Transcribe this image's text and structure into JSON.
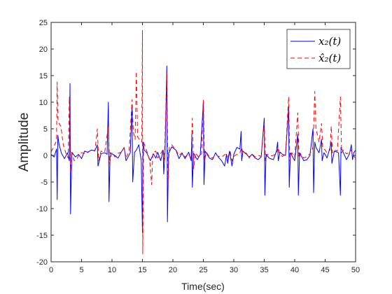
{
  "chart_data": {
    "type": "line",
    "title": "",
    "xlabel": "Time(sec)",
    "ylabel": "Amplitude",
    "xlim": [
      0,
      50
    ],
    "ylim": [
      -20,
      25
    ],
    "xticks": [
      0,
      5,
      10,
      15,
      20,
      25,
      30,
      35,
      40,
      45,
      50
    ],
    "yticks": [
      -20,
      -15,
      -10,
      -5,
      0,
      5,
      10,
      15,
      20,
      25
    ],
    "grid": false,
    "legend_position": "top-right",
    "series": [
      {
        "name": "x_2(t)",
        "legend_label": "x₂(t)",
        "color": "#0000ff",
        "line_style": "solid",
        "points": [
          [
            0.0,
            0.2
          ],
          [
            0.5,
            -0.3
          ],
          [
            0.9,
            1.2
          ],
          [
            1.0,
            -8.3
          ],
          [
            1.1,
            3.8
          ],
          [
            1.3,
            2.1
          ],
          [
            1.7,
            0.4
          ],
          [
            2.2,
            -0.6
          ],
          [
            2.7,
            0.5
          ],
          [
            3.0,
            -1.0
          ],
          [
            3.1,
            13.5
          ],
          [
            3.2,
            -11.0
          ],
          [
            3.4,
            0.6
          ],
          [
            4.0,
            -0.3
          ],
          [
            4.5,
            0.2
          ],
          [
            5.0,
            -0.6
          ],
          [
            5.5,
            0.8
          ],
          [
            6.0,
            0.6
          ],
          [
            6.6,
            1.0
          ],
          [
            7.2,
            0.9
          ],
          [
            7.6,
            2.0
          ],
          [
            7.7,
            -2.0
          ],
          [
            8.2,
            0.3
          ],
          [
            8.8,
            0.5
          ],
          [
            9.2,
            0.2
          ],
          [
            9.4,
            10.0
          ],
          [
            9.5,
            -8.7
          ],
          [
            9.7,
            0.5
          ],
          [
            10.3,
            0.1
          ],
          [
            11.0,
            -0.5
          ],
          [
            11.5,
            0.6
          ],
          [
            12.0,
            1.5
          ],
          [
            12.3,
            -1.0
          ],
          [
            13.0,
            0.5
          ],
          [
            13.3,
            9.5
          ],
          [
            13.4,
            -5.0
          ],
          [
            13.7,
            0.6
          ],
          [
            14.0,
            1.0
          ],
          [
            14.4,
            2.0
          ],
          [
            14.8,
            -1.0
          ],
          [
            15.0,
            -14.5
          ],
          [
            15.1,
            2.5
          ],
          [
            15.3,
            1.0
          ],
          [
            15.7,
            0.5
          ],
          [
            16.3,
            -1.0
          ],
          [
            16.8,
            0.3
          ],
          [
            17.2,
            -0.5
          ],
          [
            17.5,
            0.6
          ],
          [
            18.0,
            -1.0
          ],
          [
            18.4,
            1.0
          ],
          [
            18.5,
            -3.5
          ],
          [
            18.7,
            0.3
          ],
          [
            19.0,
            16.8
          ],
          [
            19.1,
            -12.5
          ],
          [
            19.3,
            0.4
          ],
          [
            19.8,
            1.6
          ],
          [
            20.5,
            1.0
          ],
          [
            21.0,
            -0.6
          ],
          [
            21.5,
            0.4
          ],
          [
            22.0,
            -0.6
          ],
          [
            22.6,
            0.6
          ],
          [
            23.0,
            -1.0
          ],
          [
            23.1,
            4.0
          ],
          [
            23.2,
            -6.0
          ],
          [
            23.4,
            0.4
          ],
          [
            24.0,
            -0.8
          ],
          [
            24.5,
            0.2
          ],
          [
            25.0,
            10.0
          ],
          [
            25.1,
            -5.5
          ],
          [
            25.3,
            0.8
          ],
          [
            26.0,
            -0.5
          ],
          [
            26.5,
            -0.8
          ],
          [
            27.0,
            0.5
          ],
          [
            27.5,
            -0.4
          ],
          [
            28.0,
            -1.0
          ],
          [
            28.5,
            -2.0
          ],
          [
            28.8,
            0.2
          ],
          [
            29.0,
            -1.5
          ],
          [
            29.3,
            0.8
          ],
          [
            29.7,
            -2.0
          ],
          [
            30.0,
            0.2
          ],
          [
            30.5,
            1.5
          ],
          [
            31.0,
            1.2
          ],
          [
            31.2,
            4.5
          ],
          [
            31.3,
            -1.0
          ],
          [
            31.5,
            0.8
          ],
          [
            32.0,
            0.3
          ],
          [
            32.5,
            -0.3
          ],
          [
            33.0,
            0.2
          ],
          [
            33.5,
            -0.5
          ],
          [
            34.0,
            -0.8
          ],
          [
            34.5,
            -0.3
          ],
          [
            35.0,
            7.0
          ],
          [
            35.1,
            -7.5
          ],
          [
            35.3,
            0.2
          ],
          [
            35.8,
            -0.5
          ],
          [
            36.5,
            -0.8
          ],
          [
            37.0,
            0.8
          ],
          [
            37.2,
            2.5
          ],
          [
            37.3,
            -1.0
          ],
          [
            37.6,
            0.6
          ],
          [
            38.0,
            0.2
          ],
          [
            38.5,
            0.0
          ],
          [
            39.0,
            9.0
          ],
          [
            39.1,
            -6.0
          ],
          [
            39.3,
            0.5
          ],
          [
            40.0,
            -1.0
          ],
          [
            40.5,
            4.0
          ],
          [
            40.6,
            -7.5
          ],
          [
            40.8,
            0.5
          ],
          [
            41.5,
            -1.0
          ],
          [
            42.0,
            -0.8
          ],
          [
            42.5,
            0.0
          ],
          [
            43.0,
            5.0
          ],
          [
            43.1,
            -7.0
          ],
          [
            43.3,
            2.5
          ],
          [
            43.5,
            1.5
          ],
          [
            44.0,
            0.5
          ],
          [
            44.4,
            3.0
          ],
          [
            44.5,
            -1.0
          ],
          [
            44.8,
            0.5
          ],
          [
            45.0,
            0.2
          ],
          [
            45.3,
            -0.5
          ],
          [
            45.8,
            1.5
          ],
          [
            46.0,
            2.5
          ],
          [
            46.1,
            -1.5
          ],
          [
            46.5,
            0.8
          ],
          [
            47.2,
            0.5
          ],
          [
            47.5,
            -7.5
          ],
          [
            47.6,
            1.5
          ],
          [
            48.0,
            0.5
          ],
          [
            48.5,
            -0.8
          ],
          [
            49.0,
            0.3
          ],
          [
            49.3,
            2.0
          ],
          [
            49.5,
            -0.8
          ],
          [
            49.7,
            0.5
          ],
          [
            50.0,
            1.0
          ]
        ]
      },
      {
        "name": "x̂_2(t)",
        "legend_label": "x̂₂(t)",
        "color": "#ff0000",
        "line_style": "dashed",
        "points": [
          [
            0.0,
            0.7
          ],
          [
            0.4,
            1.5
          ],
          [
            0.8,
            2.5
          ],
          [
            0.9,
            3.5
          ],
          [
            1.0,
            13.8
          ],
          [
            1.1,
            7.0
          ],
          [
            1.3,
            6.0
          ],
          [
            1.6,
            5.5
          ],
          [
            2.0,
            2.0
          ],
          [
            2.4,
            0.5
          ],
          [
            2.8,
            -0.5
          ],
          [
            3.0,
            11.0
          ],
          [
            3.2,
            -3.0
          ],
          [
            3.4,
            0.5
          ],
          [
            3.8,
            -1.0
          ],
          [
            4.3,
            -0.5
          ],
          [
            4.8,
            0.5
          ],
          [
            5.2,
            0.5
          ],
          [
            5.6,
            0.3
          ],
          [
            6.0,
            0.5
          ],
          [
            6.6,
            1.0
          ],
          [
            7.2,
            0.8
          ],
          [
            7.6,
            5.0
          ],
          [
            7.8,
            -1.0
          ],
          [
            8.2,
            0.8
          ],
          [
            8.8,
            0.6
          ],
          [
            9.4,
            5.5
          ],
          [
            9.6,
            -1.5
          ],
          [
            10.0,
            0.5
          ],
          [
            10.5,
            -0.3
          ],
          [
            11.0,
            0.4
          ],
          [
            11.5,
            0.6
          ],
          [
            12.0,
            1.5
          ],
          [
            12.3,
            -0.5
          ],
          [
            12.8,
            0.8
          ],
          [
            13.3,
            10.5
          ],
          [
            13.5,
            4.5
          ],
          [
            13.8,
            3.0
          ],
          [
            14.0,
            15.8
          ],
          [
            14.2,
            3.5
          ],
          [
            14.5,
            3.0
          ],
          [
            14.9,
            2.5
          ],
          [
            15.0,
            23.5
          ],
          [
            15.05,
            -18.5
          ],
          [
            15.2,
            2.5
          ],
          [
            15.5,
            1.5
          ],
          [
            15.8,
            0.5
          ],
          [
            16.2,
            -1.0
          ],
          [
            16.5,
            -5.5
          ],
          [
            16.7,
            0.5
          ],
          [
            17.2,
            0.8
          ],
          [
            17.5,
            -0.5
          ],
          [
            18.0,
            0.3
          ],
          [
            18.4,
            1.2
          ],
          [
            18.6,
            -1.0
          ],
          [
            19.0,
            15.5
          ],
          [
            19.2,
            -5.0
          ],
          [
            19.4,
            1.5
          ],
          [
            19.8,
            2.0
          ],
          [
            20.5,
            1.0
          ],
          [
            21.0,
            0.0
          ],
          [
            21.5,
            0.5
          ],
          [
            22.0,
            -0.3
          ],
          [
            22.5,
            0.3
          ],
          [
            23.0,
            -0.5
          ],
          [
            23.2,
            7.0
          ],
          [
            23.4,
            -2.5
          ],
          [
            23.7,
            0.5
          ],
          [
            24.2,
            -0.3
          ],
          [
            24.7,
            0.3
          ],
          [
            25.0,
            10.5
          ],
          [
            25.2,
            -1.0
          ],
          [
            25.5,
            0.6
          ],
          [
            26.0,
            -0.3
          ],
          [
            26.5,
            -0.5
          ],
          [
            27.0,
            0.2
          ],
          [
            27.5,
            -0.2
          ],
          [
            28.0,
            -0.3
          ],
          [
            28.6,
            0.2
          ],
          [
            29.0,
            -0.3
          ],
          [
            29.4,
            0.8
          ],
          [
            29.7,
            -1.0
          ],
          [
            30.0,
            -0.2
          ],
          [
            30.5,
            0.2
          ],
          [
            31.0,
            0.5
          ],
          [
            31.3,
            1.5
          ],
          [
            31.5,
            0.3
          ],
          [
            32.0,
            0.5
          ],
          [
            32.5,
            -0.5
          ],
          [
            33.0,
            0.3
          ],
          [
            33.5,
            -0.3
          ],
          [
            34.0,
            0.0
          ],
          [
            34.5,
            -0.2
          ],
          [
            35.0,
            6.0
          ],
          [
            35.2,
            -1.0
          ],
          [
            35.5,
            0.2
          ],
          [
            36.0,
            -0.1
          ],
          [
            36.5,
            0.0
          ],
          [
            37.0,
            0.5
          ],
          [
            37.3,
            1.5
          ],
          [
            37.5,
            0.3
          ],
          [
            38.0,
            -0.2
          ],
          [
            38.5,
            0.2
          ],
          [
            39.0,
            11.0
          ],
          [
            39.2,
            -1.0
          ],
          [
            39.5,
            0.5
          ],
          [
            40.0,
            -0.3
          ],
          [
            40.5,
            8.0
          ],
          [
            40.7,
            -0.5
          ],
          [
            41.0,
            0.3
          ],
          [
            41.5,
            -0.5
          ],
          [
            42.0,
            -0.2
          ],
          [
            42.5,
            0.3
          ],
          [
            43.0,
            1.5
          ],
          [
            43.3,
            12.0
          ],
          [
            43.5,
            5.0
          ],
          [
            43.8,
            3.5
          ],
          [
            44.0,
            2.5
          ],
          [
            44.4,
            6.0
          ],
          [
            44.6,
            1.5
          ],
          [
            45.0,
            1.0
          ],
          [
            45.3,
            0.5
          ],
          [
            45.8,
            1.0
          ],
          [
            46.0,
            5.5
          ],
          [
            46.2,
            0.5
          ],
          [
            46.5,
            1.0
          ],
          [
            47.0,
            0.8
          ],
          [
            47.5,
            11.0
          ],
          [
            47.7,
            0.5
          ],
          [
            48.0,
            1.0
          ],
          [
            48.5,
            0.3
          ],
          [
            49.0,
            0.5
          ],
          [
            49.3,
            1.0
          ],
          [
            49.6,
            0.0
          ],
          [
            50.0,
            -0.5
          ]
        ]
      }
    ]
  }
}
